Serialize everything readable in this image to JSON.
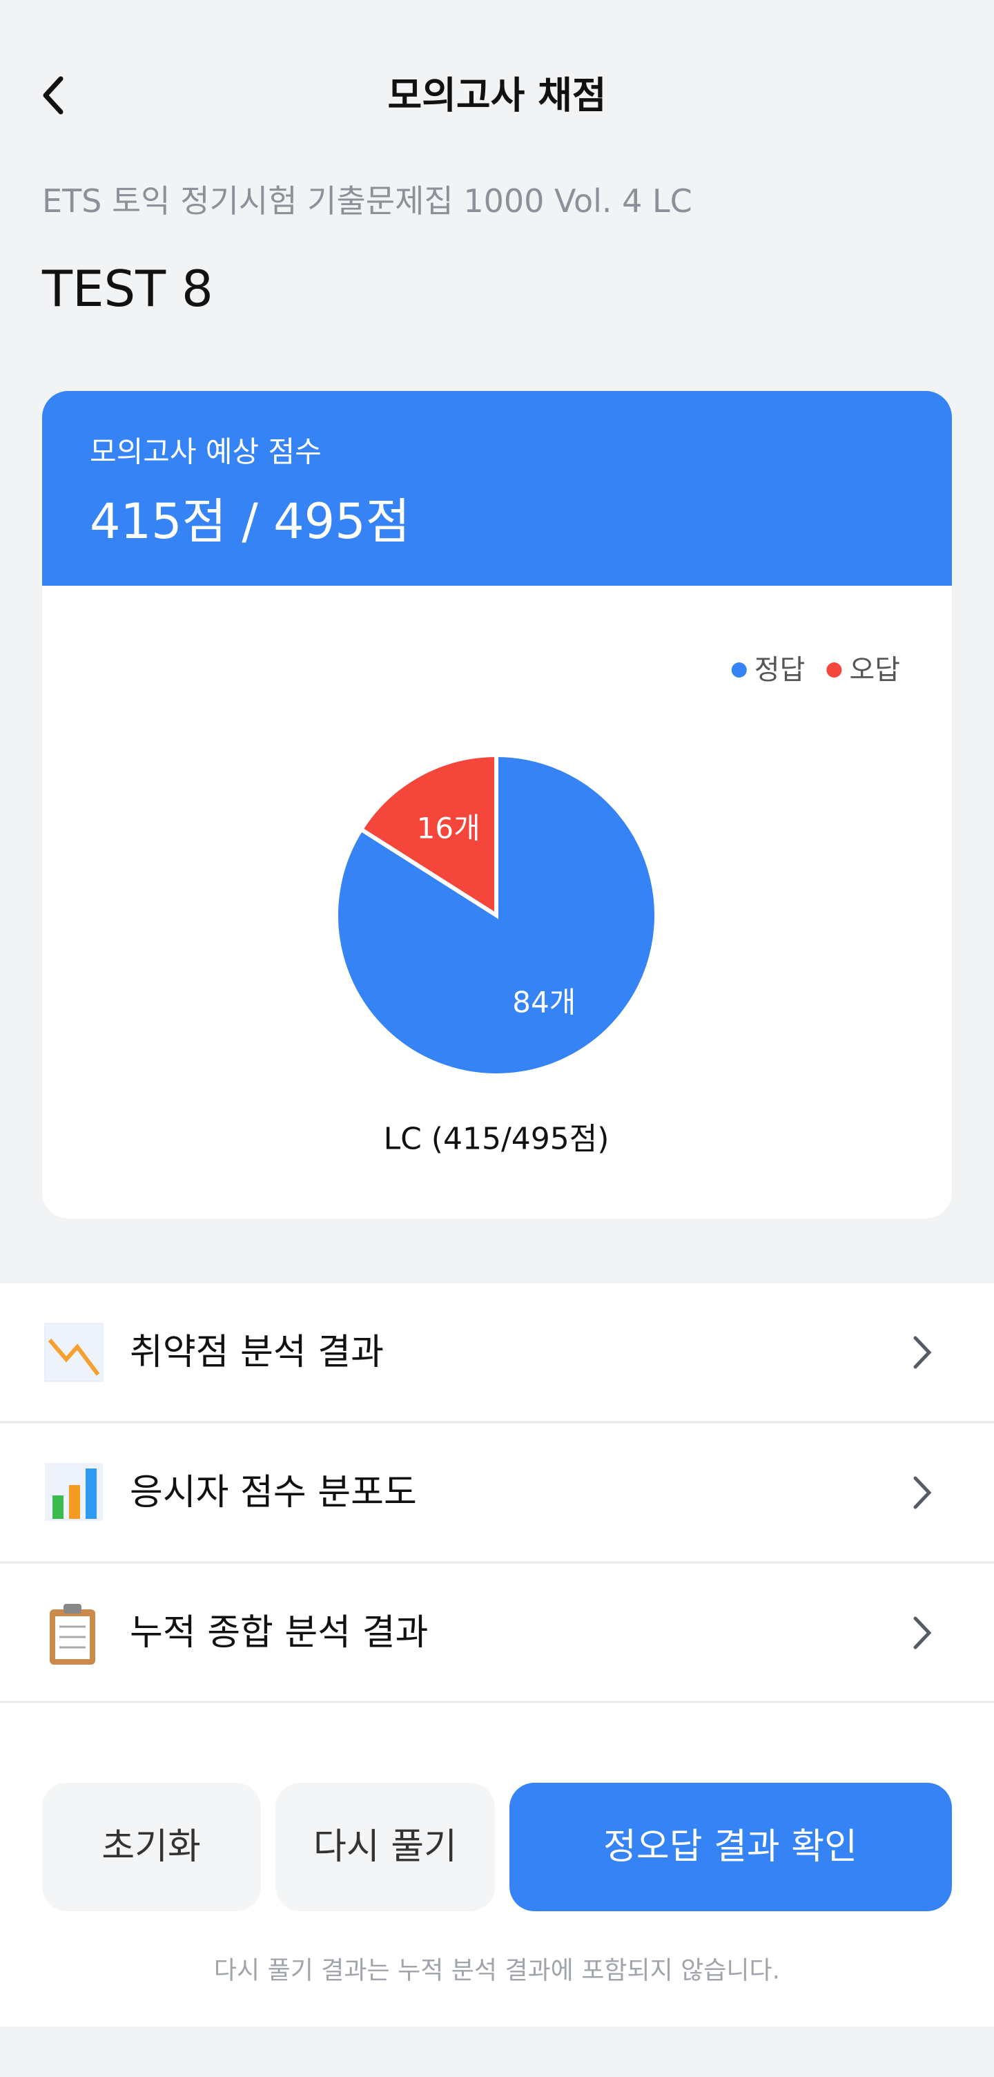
{
  "header": {
    "title": "모의고사 채점"
  },
  "book": "ETS 토익 정기시험 기출문제집 1000 Vol. 4 LC",
  "test": "TEST 8",
  "score_card": {
    "label": "모의고사 예상 점수",
    "score": "415점 / 495점"
  },
  "chart_data": {
    "type": "pie",
    "categories": [
      "정답",
      "오답"
    ],
    "values": [
      84,
      16
    ],
    "value_labels": [
      "84개",
      "16개"
    ],
    "colors": [
      "#3583f5",
      "#f5463c"
    ],
    "legend": "top-right",
    "caption": "LC (415/495점)"
  },
  "menu": [
    "취약점 분석 결과",
    "응시자 점수 분포도",
    "누적 종합 분석 결과"
  ],
  "buttons": [
    "초기화",
    "다시 풀기",
    "정오답 결과 확인"
  ],
  "note": "다시 풀기 결과는 누적 분석 결과에 포함되지 않습니다."
}
